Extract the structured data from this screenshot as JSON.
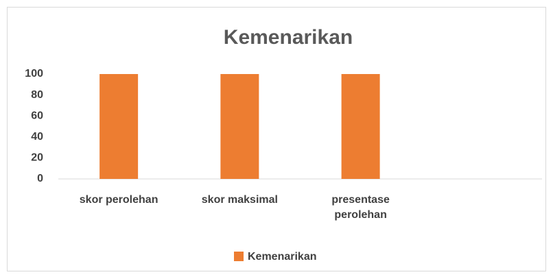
{
  "chart_data": {
    "type": "bar",
    "title": "Kemenarikan",
    "categories": [
      "skor perolehan",
      "skor maksimal",
      "presentase perolehan",
      null
    ],
    "series": [
      {
        "name": "Kemenarikan",
        "color": "#ed7d31",
        "values": [
          100,
          100,
          100,
          null
        ]
      }
    ],
    "ylim": [
      0,
      100
    ],
    "yticks": [
      0,
      20,
      40,
      60,
      80,
      100
    ],
    "grid": false,
    "legend": "bottom"
  }
}
